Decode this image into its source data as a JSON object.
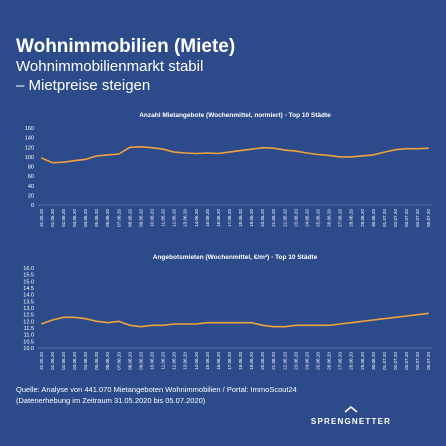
{
  "header": {
    "title": "Wohnimmobilien (Miete)",
    "subtitle": [
      "Wohnimmobilienmarkt stabil",
      "– Mietpreise steigen"
    ]
  },
  "chart_data": [
    {
      "type": "line",
      "title": "Anzahl Mietangebote (Wochenmittel, normiert) - Top 10 Städte",
      "color": "#f0a23a",
      "categories": [
        "31.05.20",
        "01.06.20",
        "02.06.20",
        "03.06.20",
        "04.06.20",
        "05.06.20",
        "06.06.20",
        "07.06.20",
        "08.06.20",
        "09.06.20",
        "10.06.20",
        "11.06.20",
        "12.06.20",
        "13.06.20",
        "14.06.20",
        "15.06.20",
        "16.06.20",
        "17.06.20",
        "18.06.20",
        "19.06.20",
        "20.06.20",
        "21.06.20",
        "22.06.20",
        "23.06.20",
        "24.06.20",
        "25.06.20",
        "26.06.20",
        "27.06.20",
        "28.06.20",
        "29.06.20",
        "30.06.20",
        "01.07.20",
        "02.07.20",
        "03.07.20",
        "04.07.20",
        "05.07.20"
      ],
      "values": [
        98,
        88,
        89,
        92,
        95,
        102,
        104,
        106,
        120,
        121,
        119,
        116,
        110,
        108,
        107,
        108,
        107,
        110,
        113,
        116,
        119,
        118,
        114,
        112,
        108,
        105,
        103,
        100,
        100,
        102,
        104,
        110,
        115,
        117,
        117,
        118
      ],
      "ylim": [
        0,
        160
      ],
      "yticks": [
        0,
        20,
        40,
        60,
        80,
        100,
        120,
        140,
        160
      ]
    },
    {
      "type": "line",
      "title": "Angebotsmieten (Wochenmittel, €/m²) - Top 10 Städte",
      "color": "#f0a23a",
      "categories": [
        "31.05.20",
        "01.06.20",
        "02.06.20",
        "03.06.20",
        "04.06.20",
        "05.06.20",
        "06.06.20",
        "07.06.20",
        "08.06.20",
        "09.06.20",
        "10.06.20",
        "11.06.20",
        "12.06.20",
        "13.06.20",
        "14.06.20",
        "15.06.20",
        "16.06.20",
        "17.06.20",
        "18.06.20",
        "19.06.20",
        "20.06.20",
        "21.06.20",
        "22.06.20",
        "23.06.20",
        "24.06.20",
        "25.06.20",
        "26.06.20",
        "27.06.20",
        "28.06.20",
        "29.06.20",
        "30.06.20",
        "01.07.20",
        "02.07.20",
        "03.07.20",
        "04.07.20",
        "05.07.20"
      ],
      "values": [
        11.8,
        12.1,
        12.3,
        12.3,
        12.2,
        12.0,
        11.9,
        12.0,
        11.7,
        11.6,
        11.7,
        11.7,
        11.8,
        11.8,
        11.8,
        11.9,
        11.9,
        11.9,
        11.9,
        11.9,
        11.7,
        11.6,
        11.6,
        11.7,
        11.7,
        11.7,
        11.7,
        11.8,
        11.9,
        12.0,
        12.1,
        12.2,
        12.3,
        12.4,
        12.5,
        12.6
      ],
      "ylim": [
        10,
        16
      ],
      "yticks": [
        {
          "value": 10,
          "label": "10.0"
        },
        10.5,
        {
          "value": 11,
          "label": "11.0"
        },
        11.5,
        {
          "value": 12,
          "label": "12.0"
        },
        12.5,
        {
          "value": 13,
          "label": "13.0"
        },
        13.5,
        {
          "value": 14,
          "label": "14.0"
        },
        14.5,
        {
          "value": 15,
          "label": "15.0"
        },
        15.5,
        {
          "value": 16,
          "label": "16.0"
        }
      ]
    }
  ],
  "source": [
    "Quelle: Analyse von 441.070 Mietangeboten Wohnimmobilien / Portal: ImmoScout24",
    "(Datenerhebung im Zeitraum 31.05.2020 bis 05.07.2020)"
  ],
  "logo": "SPRENGNETTER"
}
